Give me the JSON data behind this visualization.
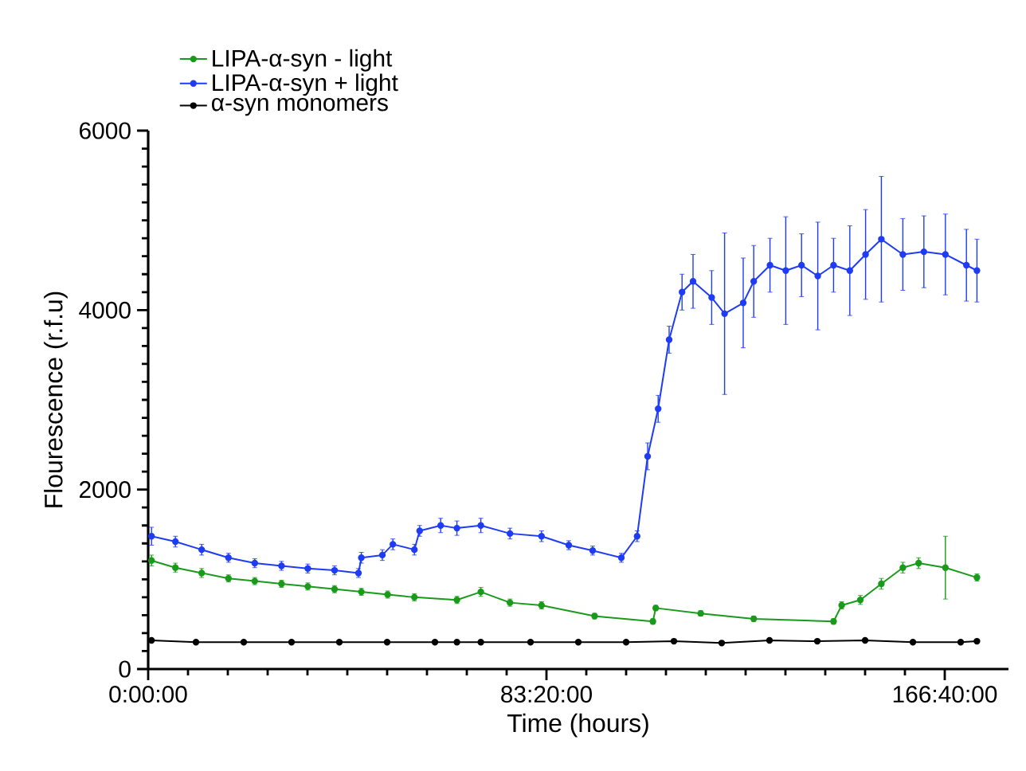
{
  "chart_data": {
    "type": "line",
    "xlabel": "Time (hours)",
    "ylabel": "Flourescence (r.f.u)",
    "xlim": [
      0,
      180
    ],
    "xticks": [
      {
        "value": 0,
        "label": "0:00:00"
      },
      {
        "value": 83.33333333333333,
        "label": "83:20:00"
      },
      {
        "value": 166.66666666666666,
        "label": "166:40:00"
      }
    ],
    "ylim": [
      0,
      6000
    ],
    "yticks": [
      0,
      2000,
      4000,
      6000
    ],
    "legend": "top left",
    "marker": "circle",
    "line_style": "solid",
    "grid": false,
    "series": [
      {
        "name": "LIPA-α-syn - light",
        "color": "#1a9a1a",
        "x": [
          0.7,
          5.7,
          11.2,
          16.8,
          22.3,
          27.9,
          33.4,
          39,
          44.6,
          50.1,
          55.7,
          64.6,
          69.6,
          75.7,
          82.3,
          93.4,
          105.6,
          106.2,
          115.6,
          126.7,
          143.4,
          145.1,
          149,
          153.4,
          157.9,
          161.2,
          166.8,
          173.4
        ],
        "values": [
          1210,
          1130,
          1070,
          1010,
          980,
          950,
          920,
          890,
          860,
          830,
          800,
          770,
          860,
          740,
          710,
          590,
          530,
          680,
          620,
          560,
          530,
          710,
          770,
          950,
          1130,
          1180,
          1130,
          1020
        ],
        "errors": [
          60,
          50,
          50,
          40,
          40,
          40,
          40,
          40,
          40,
          40,
          40,
          40,
          50,
          40,
          40,
          30,
          30,
          30,
          30,
          30,
          30,
          40,
          50,
          60,
          60,
          60,
          350,
          40
        ]
      },
      {
        "name": "LIPA-α-syn + light",
        "color": "#1f3cf5",
        "x": [
          0.7,
          5.7,
          11.2,
          16.8,
          22.3,
          27.9,
          33.4,
          39,
          44,
          44.6,
          49,
          51.2,
          55.7,
          56.8,
          61.2,
          64.6,
          69.6,
          75.7,
          82.3,
          88,
          93,
          99,
          102.3,
          104.5,
          106.7,
          109,
          111.7,
          114,
          117.9,
          120.6,
          124.5,
          126.7,
          130.1,
          133.4,
          136.7,
          140.1,
          143.4,
          146.8,
          150.1,
          153.4,
          157.9,
          162.3,
          166.8,
          171.2,
          173.4
        ],
        "values": [
          1480,
          1420,
          1330,
          1240,
          1180,
          1150,
          1120,
          1100,
          1070,
          1240,
          1270,
          1390,
          1330,
          1540,
          1600,
          1570,
          1600,
          1510,
          1480,
          1380,
          1320,
          1240,
          1480,
          2370,
          2900,
          3670,
          4200,
          4320,
          4140,
          3960,
          4080,
          4320,
          4500,
          4440,
          4500,
          4380,
          4500,
          4440,
          4620,
          4790,
          4620,
          4650,
          4620,
          4500,
          4440
        ],
        "errors": [
          100,
          60,
          60,
          50,
          50,
          50,
          50,
          50,
          50,
          60,
          60,
          60,
          60,
          60,
          80,
          80,
          80,
          60,
          60,
          50,
          50,
          50,
          60,
          150,
          150,
          150,
          200,
          300,
          300,
          900,
          500,
          400,
          300,
          600,
          350,
          600,
          300,
          500,
          500,
          700,
          400,
          400,
          450,
          400,
          350
        ]
      },
      {
        "name": "α-syn monomers",
        "color": "#000000",
        "x": [
          0.7,
          10,
          20,
          30,
          40,
          50,
          60,
          64.6,
          69.6,
          80,
          90,
          100,
          110,
          120,
          130,
          140,
          150,
          160,
          170,
          173.4
        ],
        "values": [
          320,
          300,
          300,
          300,
          300,
          300,
          300,
          300,
          300,
          300,
          300,
          300,
          310,
          290,
          320,
          310,
          320,
          300,
          300,
          310
        ]
      }
    ]
  }
}
